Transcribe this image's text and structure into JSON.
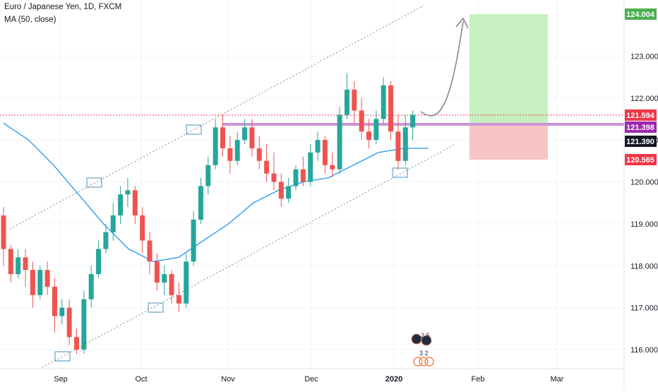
{
  "legend": {
    "title": "Euro / Japanese Yen, 1D, FXCM",
    "ma": "MA (50, close)"
  },
  "colors": {
    "up": "#26a69a",
    "down": "#ef5350",
    "ma": "#2196f3",
    "channel": "#999999",
    "resistance": "#ce93d8",
    "profit_zone": "#c6f0c0",
    "loss_zone": "#f8c5c5",
    "grid": "#f0f3fa"
  },
  "chart_data": {
    "type": "candlestick",
    "symbol": "Euro / Japanese Yen",
    "interval": "1D",
    "source": "FXCM",
    "x_ticks": [
      "Sep",
      "Oct",
      "Nov",
      "Dec",
      "2020",
      "Feb",
      "Mar"
    ],
    "y_ticks": [
      "116.000",
      "117.000",
      "118.000",
      "119.000",
      "120.000",
      "121.000",
      "122.000",
      "123.000"
    ],
    "ylim": [
      115.55,
      124.45
    ],
    "price_labels": [
      {
        "value": "124.004",
        "bg": "#4caf50",
        "fg": "#ffffff"
      },
      {
        "value": "121.594",
        "bg": "#f23645",
        "fg": "#ffffff"
      },
      {
        "value": "121.398",
        "bg": "#9c27b0",
        "fg": "#ffffff"
      },
      {
        "value": "121.390",
        "bg": "#131722",
        "fg": "#ffffff"
      },
      {
        "value": "120.565",
        "bg": "#f23645",
        "fg": "#ffffff"
      }
    ],
    "candles": [
      [
        119.2,
        119.4,
        118.0,
        118.4
      ],
      [
        118.4,
        118.5,
        117.6,
        117.8
      ],
      [
        117.8,
        118.4,
        117.7,
        118.2
      ],
      [
        118.2,
        118.4,
        117.5,
        117.9
      ],
      [
        117.9,
        118.1,
        117.0,
        117.3
      ],
      [
        117.3,
        118.0,
        117.2,
        117.9
      ],
      [
        117.9,
        118.1,
        117.3,
        117.5
      ],
      [
        117.5,
        117.7,
        116.4,
        116.8
      ],
      [
        116.8,
        117.2,
        116.6,
        117.0
      ],
      [
        117.0,
        117.2,
        116.1,
        116.3
      ],
      [
        116.3,
        116.5,
        115.9,
        116.0
      ],
      [
        116.0,
        117.4,
        115.9,
        117.2
      ],
      [
        117.2,
        118.0,
        117.0,
        117.8
      ],
      [
        117.8,
        118.6,
        117.7,
        118.4
      ],
      [
        118.4,
        119.0,
        118.3,
        118.8
      ],
      [
        118.8,
        119.5,
        118.6,
        119.2
      ],
      [
        119.2,
        119.9,
        119.0,
        119.7
      ],
      [
        119.7,
        120.1,
        119.4,
        119.8
      ],
      [
        119.8,
        119.9,
        119.0,
        119.2
      ],
      [
        119.2,
        119.4,
        118.3,
        118.6
      ],
      [
        118.6,
        118.8,
        117.8,
        118.1
      ],
      [
        118.1,
        118.3,
        117.4,
        117.6
      ],
      [
        117.6,
        118.0,
        117.3,
        117.8
      ],
      [
        117.8,
        117.9,
        117.1,
        117.3
      ],
      [
        117.3,
        117.6,
        116.9,
        117.1
      ],
      [
        117.1,
        118.3,
        117.0,
        118.1
      ],
      [
        118.1,
        119.3,
        118.0,
        119.1
      ],
      [
        119.1,
        120.1,
        119.0,
        119.9
      ],
      [
        119.9,
        120.6,
        119.7,
        120.4
      ],
      [
        120.4,
        121.5,
        120.3,
        121.3
      ],
      [
        121.3,
        121.6,
        120.6,
        120.8
      ],
      [
        120.8,
        121.1,
        120.2,
        120.5
      ],
      [
        120.5,
        121.2,
        120.4,
        121.0
      ],
      [
        121.0,
        121.5,
        120.9,
        121.3
      ],
      [
        121.3,
        121.5,
        120.6,
        120.8
      ],
      [
        120.8,
        121.1,
        120.3,
        120.5
      ],
      [
        120.5,
        120.9,
        120.0,
        120.2
      ],
      [
        120.2,
        120.7,
        119.8,
        120.0
      ],
      [
        120.0,
        120.2,
        119.4,
        119.6
      ],
      [
        119.6,
        120.1,
        119.5,
        119.9
      ],
      [
        119.9,
        120.4,
        119.8,
        120.3
      ],
      [
        120.3,
        120.6,
        119.9,
        120.0
      ],
      [
        120.0,
        120.9,
        119.9,
        120.7
      ],
      [
        120.7,
        121.2,
        120.5,
        121.0
      ],
      [
        121.0,
        121.1,
        120.2,
        120.4
      ],
      [
        120.4,
        120.7,
        120.1,
        120.3
      ],
      [
        120.3,
        121.8,
        120.2,
        121.6
      ],
      [
        121.6,
        122.6,
        121.5,
        122.2
      ],
      [
        122.2,
        122.4,
        121.4,
        121.7
      ],
      [
        121.7,
        122.0,
        121.0,
        121.2
      ],
      [
        121.2,
        121.5,
        120.8,
        121.0
      ],
      [
        121.0,
        121.7,
        120.9,
        121.5
      ],
      [
        121.5,
        122.5,
        121.4,
        122.3
      ],
      [
        122.3,
        122.4,
        121.0,
        121.2
      ],
      [
        121.2,
        121.6,
        120.3,
        120.5
      ],
      [
        120.5,
        121.6,
        120.4,
        121.3
      ],
      [
        121.3,
        121.7,
        121.0,
        121.6
      ]
    ],
    "ma50": [
      [
        0,
        121.4
      ],
      [
        6,
        121.0
      ],
      [
        12,
        120.4
      ],
      [
        18,
        119.7
      ],
      [
        24,
        119.0
      ],
      [
        30,
        118.4
      ],
      [
        36,
        118.1
      ],
      [
        42,
        118.2
      ],
      [
        48,
        118.6
      ],
      [
        54,
        119.0
      ],
      [
        60,
        119.5
      ],
      [
        66,
        119.8
      ],
      [
        72,
        120.0
      ],
      [
        78,
        120.1
      ],
      [
        84,
        120.4
      ],
      [
        90,
        120.7
      ],
      [
        96,
        120.8
      ],
      [
        102,
        120.8
      ]
    ]
  }
}
